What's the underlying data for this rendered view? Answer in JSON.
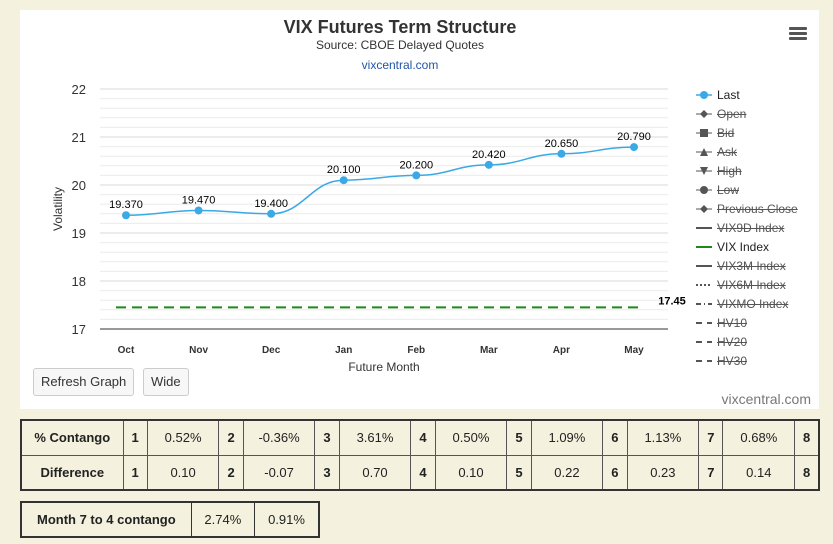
{
  "header": {
    "title": "VIX Futures Term Structure",
    "subtitle": "Source: CBOE Delayed Quotes",
    "link": "vixcentral.com"
  },
  "credit": "vixcentral.com",
  "buttons": {
    "refresh": "Refresh Graph",
    "wide": "Wide"
  },
  "chart_data": {
    "type": "line",
    "xlabel": "Future Month",
    "ylabel": "Volatility",
    "ylim": [
      17,
      22
    ],
    "yticks": [
      17,
      18,
      19,
      20,
      21,
      22
    ],
    "categories": [
      "Oct",
      "Nov",
      "Dec",
      "Jan",
      "Feb",
      "Mar",
      "Apr",
      "May"
    ],
    "series": [
      {
        "name": "Last",
        "values": [
          19.37,
          19.47,
          19.4,
          20.1,
          20.2,
          20.42,
          20.65,
          20.79
        ],
        "labels": [
          "19.370",
          "19.470",
          "19.400",
          "20.100",
          "20.200",
          "20.420",
          "20.650",
          "20.790"
        ],
        "color": "#3ba9e6"
      },
      {
        "name": "VIX Index",
        "value": 17.45,
        "label": "17.45",
        "color": "#1a8a1a",
        "style": "dashed"
      }
    ],
    "grid": true,
    "legend_position": "right"
  },
  "legend": [
    {
      "label": "Last",
      "state": "active",
      "symbol": "dot-line",
      "color": "#3ba9e6"
    },
    {
      "label": "Open",
      "state": "hidden",
      "symbol": "diamond"
    },
    {
      "label": "Bid",
      "state": "hidden",
      "symbol": "square"
    },
    {
      "label": "Ask",
      "state": "hidden",
      "symbol": "triangle"
    },
    {
      "label": "High",
      "state": "hidden",
      "symbol": "triangle-down"
    },
    {
      "label": "Low",
      "state": "hidden",
      "symbol": "circle"
    },
    {
      "label": "Previous Close",
      "state": "hidden",
      "symbol": "diamond"
    },
    {
      "label": "VIX9D Index",
      "state": "hidden",
      "symbol": "line"
    },
    {
      "label": "VIX Index",
      "state": "active",
      "symbol": "line",
      "color": "#1a8a1a"
    },
    {
      "label": "VIX3M Index",
      "state": "hidden",
      "symbol": "line"
    },
    {
      "label": "VIX6M Index",
      "state": "hidden",
      "symbol": "dotted"
    },
    {
      "label": "VIXMO Index",
      "state": "hidden",
      "symbol": "dashdot"
    },
    {
      "label": "HV10",
      "state": "hidden",
      "symbol": "dash"
    },
    {
      "label": "HV20",
      "state": "hidden",
      "symbol": "dash"
    },
    {
      "label": "HV30",
      "state": "hidden",
      "symbol": "dash"
    }
  ],
  "table_main": {
    "contango_label": "% Contango",
    "difference_label": "Difference",
    "months": [
      "1",
      "2",
      "3",
      "4",
      "5",
      "6",
      "7",
      "8"
    ],
    "contango": [
      "0.52%",
      "-0.36%",
      "3.61%",
      "0.50%",
      "1.09%",
      "1.13%",
      "0.68%"
    ],
    "difference": [
      "0.10",
      "-0.07",
      "0.70",
      "0.10",
      "0.22",
      "0.23",
      "0.14"
    ]
  },
  "table_bottom": {
    "label": "Month 7 to 4 contango",
    "values": [
      "2.74%",
      "0.91%"
    ]
  }
}
